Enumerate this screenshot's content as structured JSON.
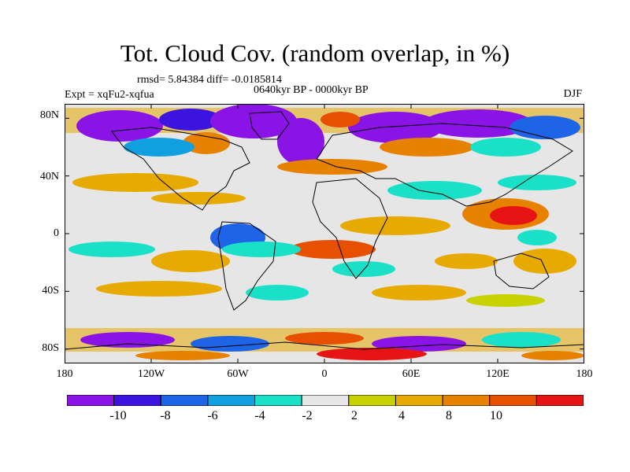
{
  "header": {
    "title": "Tot. Cloud Cov. (random overlap, in %)",
    "stats": "rmsd= 5.84384 diff= -0.0185814",
    "period": "0640kyr BP - 0000kyr BP",
    "experiment": "Expt = xqFu2-xqfua",
    "season": "DJF"
  },
  "map": {
    "lat_labels": [
      "80N",
      "40N",
      "0",
      "40S",
      "80S"
    ],
    "lon_labels": [
      "180",
      "120W",
      "60W",
      "0",
      "60E",
      "120E",
      "180"
    ],
    "lat_tick_values": [
      80,
      40,
      0,
      -40,
      -80
    ],
    "lon_tick_values": [
      -180,
      -120,
      -60,
      0,
      60,
      120,
      180
    ],
    "lat_range": [
      -90,
      90
    ],
    "lon_range": [
      -180,
      180
    ],
    "background_color": "#e6e6e6"
  },
  "colorbar": {
    "labels": [
      "-10",
      "-8",
      "-6",
      "-4",
      "-2",
      "2",
      "4",
      "8",
      "10"
    ],
    "colors": [
      "#8a14e6",
      "#3c14e0",
      "#1e64e6",
      "#10a0e0",
      "#1ae0c8",
      "#e6e6e6",
      "#c8d200",
      "#e6aa00",
      "#e68200",
      "#e65000",
      "#e61414"
    ]
  }
}
